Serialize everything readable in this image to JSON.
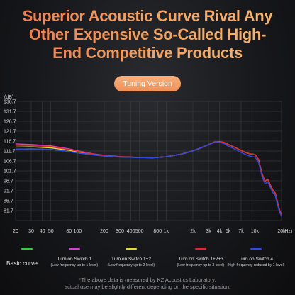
{
  "headline": {
    "line1": "Superior Acoustic Curve Rival Any",
    "line2": "Other Expensive So-Called High-",
    "line3": "End Competitive Products"
  },
  "badge": "Tuning Version",
  "legend": {
    "basic_label": "Basic curve",
    "items": [
      {
        "name": "",
        "sub": "",
        "color": "#2fd13a"
      },
      {
        "name": "Turn on Switch 1",
        "sub": "(Low frequency up to 1 level)",
        "color": "#d43fd6"
      },
      {
        "name": "Turn on Switch 1+2",
        "sub": "(Low frequency up to 2 level)",
        "color": "#e3dc2a"
      },
      {
        "name": "Turn on Switch 1+2+3",
        "sub": "(Low frequency up to 3 level)",
        "color": "#e8232f"
      },
      {
        "name": "Turn on Switch 4",
        "sub": "(high frequency reduced by 1 level)",
        "color": "#2f48e6"
      }
    ]
  },
  "note": {
    "line1": "*The above data is measured by KZ Acoustics Laboratory,",
    "line2": "actual use may be slightly different depending on the specific situation."
  },
  "chart_data": {
    "type": "line",
    "xscale": "log",
    "xlim": [
      20,
      20000
    ],
    "ylim": [
      76.7,
      136.7
    ],
    "ylabel": "(dB)",
    "xunit": "(Hz)",
    "yticks": [
      "136.7",
      "131.7",
      "126.7",
      "121.7",
      "116.7",
      "111.7",
      "106.7",
      "101.7",
      "96.7",
      "91.7",
      "86.7",
      "81.7"
    ],
    "ytick_values": [
      136.7,
      131.7,
      126.7,
      121.7,
      116.7,
      111.7,
      106.7,
      101.7,
      96.7,
      91.7,
      86.7,
      81.7
    ],
    "xticks": [
      {
        "label": "20",
        "value": 20
      },
      {
        "label": "30",
        "value": 30
      },
      {
        "label": "40",
        "value": 40
      },
      {
        "label": "50",
        "value": 50
      },
      {
        "label": "80",
        "value": 80
      },
      {
        "label": "100",
        "value": 100
      },
      {
        "label": "200",
        "value": 200
      },
      {
        "label": "300",
        "value": 300
      },
      {
        "label": "400",
        "value": 400
      },
      {
        "label": "500",
        "value": 500
      },
      {
        "label": "800",
        "value": 800
      },
      {
        "label": "1k",
        "value": 1000
      },
      {
        "label": "2k",
        "value": 2000
      },
      {
        "label": "3k",
        "value": 3000
      },
      {
        "label": "4k",
        "value": 4000
      },
      {
        "label": "5k",
        "value": 5000
      },
      {
        "label": "7k",
        "value": 7000
      },
      {
        "label": "10k",
        "value": 10000
      },
      {
        "label": "20k",
        "value": 20000
      }
    ],
    "grid": true,
    "series": [
      {
        "name": "Basic curve",
        "color": "#2fd13a",
        "points": [
          [
            20,
            112.6
          ],
          [
            30,
            112.8
          ],
          [
            50,
            112.5
          ],
          [
            80,
            111.5
          ],
          [
            100,
            110.8
          ],
          [
            150,
            109.8
          ],
          [
            200,
            109.2
          ],
          [
            300,
            108.7
          ],
          [
            500,
            108.4
          ],
          [
            700,
            108.3
          ],
          [
            1000,
            108.8
          ],
          [
            1500,
            110.2
          ],
          [
            2000,
            111.8
          ],
          [
            2500,
            113.4
          ],
          [
            3000,
            114.9
          ],
          [
            3500,
            116.2
          ],
          [
            4000,
            116.4
          ],
          [
            4500,
            116.0
          ],
          [
            5000,
            115.0
          ],
          [
            6000,
            113.5
          ],
          [
            7000,
            112.0
          ],
          [
            8000,
            110.8
          ],
          [
            9000,
            110.2
          ],
          [
            10000,
            110.0
          ],
          [
            11000,
            107.5
          ],
          [
            12000,
            100.5
          ],
          [
            13000,
            96.5
          ],
          [
            14000,
            97.5
          ],
          [
            15000,
            94.5
          ],
          [
            16000,
            92.0
          ],
          [
            17000,
            90.5
          ],
          [
            18000,
            86.0
          ],
          [
            19000,
            82.0
          ],
          [
            20000,
            79.5
          ]
        ]
      },
      {
        "name": "Turn on Switch 1",
        "color": "#d43fd6",
        "points": [
          [
            20,
            115.3
          ],
          [
            30,
            115.0
          ],
          [
            50,
            114.3
          ],
          [
            80,
            112.8
          ],
          [
            100,
            111.8
          ],
          [
            150,
            110.3
          ],
          [
            200,
            109.6
          ],
          [
            300,
            108.9
          ],
          [
            500,
            108.5
          ],
          [
            700,
            108.4
          ],
          [
            1000,
            108.8
          ],
          [
            1500,
            110.2
          ],
          [
            2000,
            111.8
          ],
          [
            2500,
            113.4
          ],
          [
            3000,
            114.9
          ],
          [
            3500,
            116.2
          ],
          [
            4000,
            116.4
          ],
          [
            4500,
            116.0
          ],
          [
            5000,
            115.0
          ],
          [
            6000,
            113.5
          ],
          [
            7000,
            112.0
          ],
          [
            8000,
            110.8
          ],
          [
            9000,
            110.2
          ],
          [
            10000,
            110.0
          ],
          [
            11000,
            107.5
          ],
          [
            12000,
            100.5
          ],
          [
            13000,
            96.5
          ],
          [
            14000,
            97.5
          ],
          [
            15000,
            94.5
          ],
          [
            16000,
            92.0
          ],
          [
            17000,
            90.5
          ],
          [
            18000,
            86.0
          ],
          [
            19000,
            82.0
          ],
          [
            20000,
            79.5
          ]
        ]
      },
      {
        "name": "Turn on Switch 1+2",
        "color": "#e3dc2a",
        "points": [
          [
            20,
            113.7
          ],
          [
            30,
            113.8
          ],
          [
            50,
            113.3
          ],
          [
            80,
            112.1
          ],
          [
            100,
            111.3
          ],
          [
            150,
            110.0
          ],
          [
            200,
            109.4
          ],
          [
            300,
            108.8
          ],
          [
            500,
            108.45
          ],
          [
            700,
            108.35
          ],
          [
            1000,
            108.8
          ],
          [
            1500,
            110.2
          ],
          [
            2000,
            111.8
          ],
          [
            2500,
            113.4
          ],
          [
            3000,
            114.9
          ],
          [
            3500,
            116.2
          ],
          [
            4000,
            116.4
          ],
          [
            4500,
            116.0
          ],
          [
            5000,
            115.0
          ],
          [
            6000,
            113.5
          ],
          [
            7000,
            112.0
          ],
          [
            8000,
            110.8
          ],
          [
            9000,
            110.2
          ],
          [
            10000,
            110.0
          ],
          [
            11000,
            107.5
          ],
          [
            12000,
            100.5
          ],
          [
            13000,
            96.5
          ],
          [
            14000,
            97.5
          ],
          [
            15000,
            94.5
          ],
          [
            16000,
            92.0
          ],
          [
            17000,
            90.5
          ],
          [
            18000,
            86.0
          ],
          [
            19000,
            82.0
          ],
          [
            20000,
            79.5
          ]
        ]
      },
      {
        "name": "Turn on Switch 1+2+3",
        "color": "#e8232f",
        "points": [
          [
            20,
            114.6
          ],
          [
            30,
            114.5
          ],
          [
            50,
            113.9
          ],
          [
            80,
            112.5
          ],
          [
            100,
            111.6
          ],
          [
            150,
            110.2
          ],
          [
            200,
            109.5
          ],
          [
            300,
            108.85
          ],
          [
            500,
            108.5
          ],
          [
            700,
            108.4
          ],
          [
            1000,
            108.8
          ],
          [
            1500,
            110.2
          ],
          [
            2000,
            111.8
          ],
          [
            2500,
            113.4
          ],
          [
            3000,
            114.9
          ],
          [
            3500,
            116.2
          ],
          [
            4000,
            116.4
          ],
          [
            4500,
            116.0
          ],
          [
            5000,
            115.0
          ],
          [
            6000,
            113.5
          ],
          [
            7000,
            112.0
          ],
          [
            8000,
            110.8
          ],
          [
            9000,
            110.2
          ],
          [
            10000,
            110.0
          ],
          [
            11000,
            107.5
          ],
          [
            12000,
            100.5
          ],
          [
            13000,
            96.5
          ],
          [
            14000,
            97.5
          ],
          [
            15000,
            94.5
          ],
          [
            16000,
            92.0
          ],
          [
            17000,
            90.5
          ],
          [
            18000,
            86.0
          ],
          [
            19000,
            82.0
          ],
          [
            20000,
            79.5
          ]
        ]
      },
      {
        "name": "Turn on Switch 4",
        "color": "#2f48e6",
        "points": [
          [
            20,
            112.6
          ],
          [
            30,
            112.8
          ],
          [
            50,
            112.5
          ],
          [
            80,
            111.5
          ],
          [
            100,
            110.8
          ],
          [
            150,
            109.8
          ],
          [
            200,
            109.2
          ],
          [
            300,
            108.7
          ],
          [
            500,
            108.4
          ],
          [
            700,
            108.3
          ],
          [
            1000,
            108.8
          ],
          [
            1500,
            110.2
          ],
          [
            2000,
            111.8
          ],
          [
            2500,
            113.4
          ],
          [
            3000,
            114.9
          ],
          [
            3500,
            116.0
          ],
          [
            4000,
            116.0
          ],
          [
            4500,
            115.4
          ],
          [
            5000,
            114.2
          ],
          [
            6000,
            112.6
          ],
          [
            7000,
            111.0
          ],
          [
            8000,
            109.8
          ],
          [
            9000,
            109.0
          ],
          [
            10000,
            108.7
          ],
          [
            11000,
            106.2
          ],
          [
            12000,
            99.2
          ],
          [
            13000,
            95.2
          ],
          [
            14000,
            96.2
          ],
          [
            15000,
            93.2
          ],
          [
            16000,
            90.7
          ],
          [
            17000,
            89.2
          ],
          [
            18000,
            84.7
          ],
          [
            19000,
            81.0
          ],
          [
            20000,
            78.8
          ]
        ]
      }
    ]
  }
}
